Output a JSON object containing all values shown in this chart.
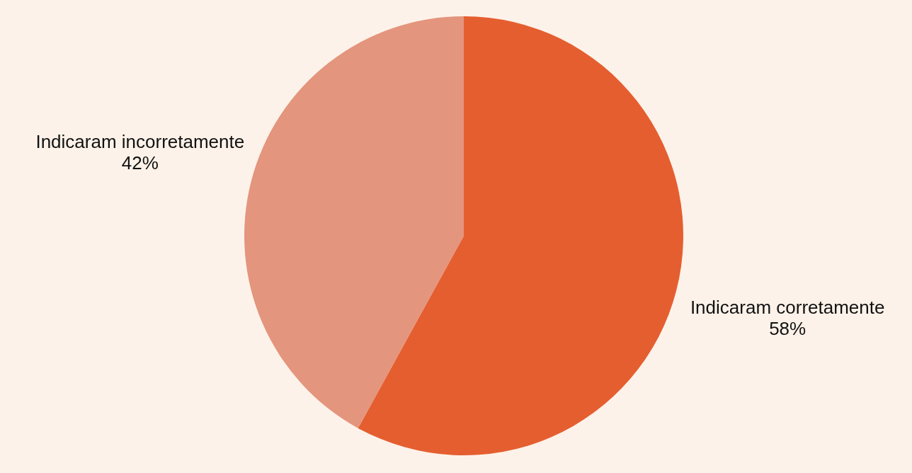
{
  "chart_data": {
    "type": "pie",
    "categories": [
      "Indicaram corretamente",
      "Indicaram incorretamente"
    ],
    "values": [
      58,
      42
    ],
    "value_labels": [
      "58%",
      "42%"
    ],
    "colors": [
      "#e55e30",
      "#e4957d"
    ]
  }
}
